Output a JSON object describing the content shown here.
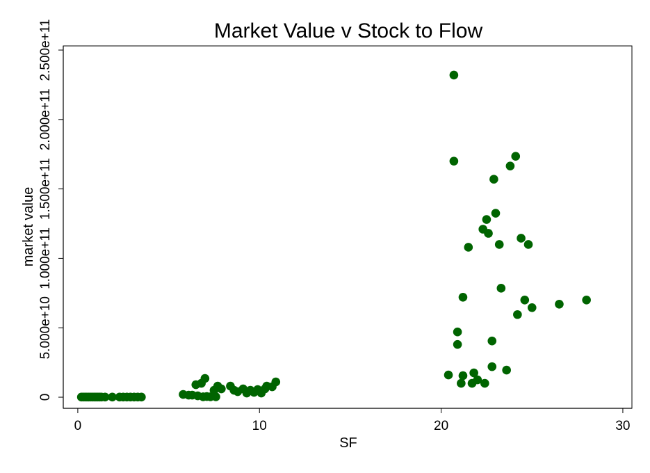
{
  "chart_data": {
    "type": "scatter",
    "title": "Market Value v Stock to Flow",
    "xlabel": "SF",
    "ylabel": "market value",
    "xlim": [
      -0.8,
      30.5
    ],
    "ylim": [
      -8000000000,
      253000000000
    ],
    "xticks": [
      0,
      10,
      20,
      30
    ],
    "xtick_labels": [
      "0",
      "10",
      "20",
      "30"
    ],
    "yticks": [
      0,
      50000000000,
      100000000000,
      150000000000,
      200000000000,
      250000000000
    ],
    "ytick_labels": [
      "0",
      "5.000e+10",
      "1.000e+11",
      "1.500e+11",
      "2.000e+11",
      "2.500e+11"
    ],
    "grid": false,
    "legend": "none",
    "marker_color": "#006400",
    "points": [
      {
        "x": 0.2,
        "y": 100000000
      },
      {
        "x": 0.3,
        "y": 100000000
      },
      {
        "x": 0.4,
        "y": 100000000
      },
      {
        "x": 0.5,
        "y": 100000000
      },
      {
        "x": 0.6,
        "y": 100000000
      },
      {
        "x": 0.7,
        "y": 100000000
      },
      {
        "x": 0.8,
        "y": 100000000
      },
      {
        "x": 0.9,
        "y": 100000000
      },
      {
        "x": 1.0,
        "y": 100000000
      },
      {
        "x": 1.1,
        "y": 100000000
      },
      {
        "x": 1.2,
        "y": 100000000
      },
      {
        "x": 1.3,
        "y": 100000000
      },
      {
        "x": 1.5,
        "y": 100000000
      },
      {
        "x": 1.9,
        "y": 100000000
      },
      {
        "x": 2.3,
        "y": 100000000
      },
      {
        "x": 2.5,
        "y": 100000000
      },
      {
        "x": 2.7,
        "y": 100000000
      },
      {
        "x": 2.9,
        "y": 100000000
      },
      {
        "x": 3.1,
        "y": 100000000
      },
      {
        "x": 3.3,
        "y": 100000000
      },
      {
        "x": 3.5,
        "y": 100000000
      },
      {
        "x": 5.8,
        "y": 2000000000
      },
      {
        "x": 6.1,
        "y": 1500000000
      },
      {
        "x": 6.3,
        "y": 1500000000
      },
      {
        "x": 6.5,
        "y": 9000000000
      },
      {
        "x": 6.6,
        "y": 1000000000
      },
      {
        "x": 6.8,
        "y": 10000000000
      },
      {
        "x": 6.9,
        "y": 300000000
      },
      {
        "x": 7.0,
        "y": 13500000000
      },
      {
        "x": 7.1,
        "y": 500000000
      },
      {
        "x": 7.3,
        "y": 300000000
      },
      {
        "x": 7.5,
        "y": 5000000000
      },
      {
        "x": 7.6,
        "y": 300000000
      },
      {
        "x": 7.7,
        "y": 8000000000
      },
      {
        "x": 7.9,
        "y": 6000000000
      },
      {
        "x": 8.4,
        "y": 8000000000
      },
      {
        "x": 8.6,
        "y": 5000000000
      },
      {
        "x": 8.8,
        "y": 4000000000
      },
      {
        "x": 9.1,
        "y": 6000000000
      },
      {
        "x": 9.3,
        "y": 3000000000
      },
      {
        "x": 9.5,
        "y": 5000000000
      },
      {
        "x": 9.7,
        "y": 3500000000
      },
      {
        "x": 9.9,
        "y": 5500000000
      },
      {
        "x": 10.1,
        "y": 3000000000
      },
      {
        "x": 10.3,
        "y": 6000000000
      },
      {
        "x": 10.4,
        "y": 8000000000
      },
      {
        "x": 10.7,
        "y": 7500000000
      },
      {
        "x": 10.9,
        "y": 11000000000
      },
      {
        "x": 20.4,
        "y": 16000000000
      },
      {
        "x": 20.7,
        "y": 232000000000
      },
      {
        "x": 20.7,
        "y": 170000000000
      },
      {
        "x": 20.9,
        "y": 47000000000
      },
      {
        "x": 20.9,
        "y": 38000000000
      },
      {
        "x": 21.1,
        "y": 10000000000
      },
      {
        "x": 21.2,
        "y": 72000000000
      },
      {
        "x": 21.2,
        "y": 15500000000
      },
      {
        "x": 21.5,
        "y": 108000000000
      },
      {
        "x": 21.7,
        "y": 10000000000
      },
      {
        "x": 21.8,
        "y": 17500000000
      },
      {
        "x": 22.0,
        "y": 12500000000
      },
      {
        "x": 22.3,
        "y": 121000000000
      },
      {
        "x": 22.4,
        "y": 10000000000
      },
      {
        "x": 22.5,
        "y": 128000000000
      },
      {
        "x": 22.6,
        "y": 118000000000
      },
      {
        "x": 22.8,
        "y": 40500000000
      },
      {
        "x": 22.8,
        "y": 22000000000
      },
      {
        "x": 22.9,
        "y": 157000000000
      },
      {
        "x": 23.0,
        "y": 132500000000
      },
      {
        "x": 23.2,
        "y": 110000000000
      },
      {
        "x": 23.3,
        "y": 78500000000
      },
      {
        "x": 23.6,
        "y": 19500000000
      },
      {
        "x": 23.8,
        "y": 166500000000
      },
      {
        "x": 24.1,
        "y": 173500000000
      },
      {
        "x": 24.2,
        "y": 59500000000
      },
      {
        "x": 24.4,
        "y": 114500000000
      },
      {
        "x": 24.6,
        "y": 70000000000
      },
      {
        "x": 24.8,
        "y": 110000000000
      },
      {
        "x": 25.0,
        "y": 64500000000
      },
      {
        "x": 26.5,
        "y": 67000000000
      },
      {
        "x": 28.0,
        "y": 70000000000
      }
    ]
  }
}
